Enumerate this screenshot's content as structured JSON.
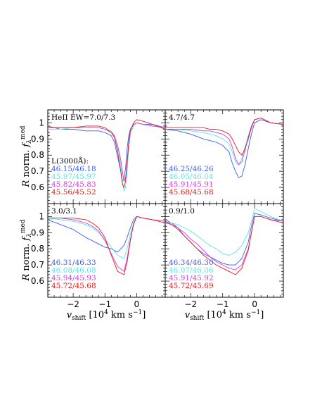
{
  "chart_data": {
    "type": "line",
    "layout": "2x2 grid, shared axes",
    "xlabel": "v_shift [10^4 km s^-1]",
    "xlabel_main": "v",
    "xlabel_sub": "shift",
    "xlabel_unit_pre": " [10",
    "xlabel_unit_exp": "4",
    "xlabel_unit_post": " km s",
    "xlabel_unit_exp2": "−1",
    "xlabel_unit_end": "]",
    "ylabel": "R norm. f_λ^med",
    "ylabel_pre": "R",
    "ylabel_mid": " norm. ",
    "ylabel_f": "f",
    "ylabel_sub": "λ",
    "ylabel_sup": "med",
    "xlim": [
      -2.8,
      0.9
    ],
    "ylim": [
      0.5,
      1.08
    ],
    "x_ticks": [
      -2,
      -1,
      0
    ],
    "x_tick_labels": [
      "−2",
      "−1",
      "0"
    ],
    "y_ticks": [
      0.6,
      0.7,
      0.8,
      0.9,
      1.0
    ],
    "y_tick_labels": [
      "0.6",
      "0.7",
      "0.8",
      "0.9",
      "1"
    ],
    "legend_header": "L(3000Å):",
    "colors": {
      "blue": "#3b5ff0",
      "cyan": "#5ee6e6",
      "magenta": "#d63ce6",
      "red": "#f01818"
    },
    "panels": [
      {
        "title": "HeII EW=7.0/7.3",
        "legend_header_shown": true,
        "labels": [
          "46.15/46.18",
          "45.97/45.97",
          "45.82/45.83",
          "45.56/45.52"
        ],
        "series": [
          {
            "color_key": "blue",
            "x": [
              -2.8,
              -2.4,
              -2.0,
              -1.6,
              -1.2,
              -1.0,
              -0.8,
              -0.7,
              -0.6,
              -0.5,
              -0.45,
              -0.4,
              -0.35,
              -0.3,
              -0.25,
              -0.2,
              -0.1,
              0,
              0.2,
              0.5,
              0.9
            ],
            "y": [
              0.98,
              0.96,
              0.96,
              0.95,
              0.95,
              0.94,
              0.92,
              0.88,
              0.79,
              0.7,
              0.64,
              0.65,
              0.72,
              0.84,
              0.92,
              0.96,
              0.99,
              1.0,
              0.99,
              0.99,
              0.97
            ]
          },
          {
            "color_key": "cyan",
            "x": [
              -2.8,
              -2.4,
              -2.0,
              -1.6,
              -1.2,
              -1.0,
              -0.8,
              -0.7,
              -0.6,
              -0.5,
              -0.45,
              -0.4,
              -0.35,
              -0.3,
              -0.25,
              -0.2,
              -0.1,
              0,
              0.2,
              0.5,
              0.9
            ],
            "y": [
              0.96,
              0.96,
              0.97,
              0.97,
              0.97,
              0.96,
              0.95,
              0.92,
              0.85,
              0.74,
              0.64,
              0.58,
              0.6,
              0.7,
              0.84,
              0.93,
              0.98,
              1.0,
              0.99,
              0.98,
              0.97
            ]
          },
          {
            "color_key": "magenta",
            "x": [
              -2.8,
              -2.4,
              -2.0,
              -1.6,
              -1.2,
              -1.0,
              -0.8,
              -0.7,
              -0.6,
              -0.5,
              -0.45,
              -0.4,
              -0.35,
              -0.3,
              -0.25,
              -0.2,
              -0.1,
              0,
              0.2,
              0.5,
              0.9
            ],
            "y": [
              0.97,
              0.97,
              0.97,
              0.97,
              0.97,
              0.96,
              0.94,
              0.92,
              0.86,
              0.77,
              0.7,
              0.64,
              0.66,
              0.76,
              0.88,
              0.95,
              0.99,
              1.0,
              0.99,
              0.98,
              0.97
            ]
          },
          {
            "color_key": "red",
            "x": [
              -2.8,
              -2.4,
              -2.0,
              -1.6,
              -1.2,
              -1.0,
              -0.8,
              -0.7,
              -0.6,
              -0.5,
              -0.45,
              -0.4,
              -0.35,
              -0.3,
              -0.25,
              -0.2,
              -0.1,
              0,
              0.2,
              0.5,
              0.9
            ],
            "y": [
              0.97,
              0.97,
              0.97,
              0.98,
              0.98,
              0.97,
              0.94,
              0.91,
              0.82,
              0.7,
              0.62,
              0.6,
              0.64,
              0.75,
              0.87,
              0.95,
              1.0,
              1.02,
              1.01,
              0.99,
              0.96
            ]
          }
        ]
      },
      {
        "title": "4.7/4.7",
        "legend_header_shown": false,
        "labels": [
          "46.25/46.26",
          "46.05/46.04",
          "45.91/45.91",
          "45.68/45.68"
        ],
        "series": [
          {
            "color_key": "blue",
            "x": [
              -2.8,
              -2.4,
              -2.0,
              -1.6,
              -1.4,
              -1.2,
              -1.0,
              -0.8,
              -0.7,
              -0.6,
              -0.5,
              -0.4,
              -0.3,
              -0.2,
              -0.1,
              0,
              0.2,
              0.5,
              0.9
            ],
            "y": [
              0.96,
              0.95,
              0.93,
              0.9,
              0.89,
              0.88,
              0.86,
              0.82,
              0.75,
              0.7,
              0.66,
              0.67,
              0.74,
              0.84,
              0.93,
              1.0,
              1.02,
              1.0,
              0.99
            ]
          },
          {
            "color_key": "cyan",
            "x": [
              -2.8,
              -2.4,
              -2.0,
              -1.6,
              -1.4,
              -1.2,
              -1.0,
              -0.8,
              -0.7,
              -0.6,
              -0.5,
              -0.4,
              -0.3,
              -0.2,
              -0.1,
              0,
              0.2,
              0.5,
              0.9
            ],
            "y": [
              0.96,
              0.96,
              0.95,
              0.94,
              0.93,
              0.92,
              0.9,
              0.87,
              0.82,
              0.76,
              0.74,
              0.78,
              0.85,
              0.92,
              0.98,
              1.02,
              1.03,
              1.0,
              0.99
            ]
          },
          {
            "color_key": "magenta",
            "x": [
              -2.8,
              -2.4,
              -2.0,
              -1.6,
              -1.4,
              -1.2,
              -1.0,
              -0.8,
              -0.7,
              -0.6,
              -0.5,
              -0.4,
              -0.3,
              -0.2,
              -0.1,
              0,
              0.2,
              0.5,
              0.9
            ],
            "y": [
              0.96,
              0.96,
              0.96,
              0.95,
              0.95,
              0.94,
              0.93,
              0.9,
              0.85,
              0.78,
              0.74,
              0.76,
              0.83,
              0.91,
              0.98,
              1.02,
              1.03,
              1.0,
              0.99
            ]
          },
          {
            "color_key": "red",
            "x": [
              -2.8,
              -2.4,
              -2.0,
              -1.6,
              -1.4,
              -1.2,
              -1.0,
              -0.8,
              -0.7,
              -0.6,
              -0.5,
              -0.4,
              -0.3,
              -0.2,
              -0.1,
              0,
              0.2,
              0.5,
              0.9
            ],
            "y": [
              0.97,
              0.97,
              0.97,
              0.97,
              0.96,
              0.96,
              0.95,
              0.93,
              0.9,
              0.86,
              0.82,
              0.8,
              0.84,
              0.9,
              0.97,
              1.02,
              1.03,
              1.0,
              0.99
            ]
          }
        ]
      },
      {
        "title": "3.0/3.1",
        "legend_header_shown": false,
        "labels": [
          "46.31/46.33",
          "46.08/46.08",
          "45.94/45.93",
          "45.72/45.68"
        ],
        "series": [
          {
            "color_key": "blue",
            "x": [
              -2.8,
              -2.4,
              -2.0,
              -1.6,
              -1.4,
              -1.2,
              -1.0,
              -0.8,
              -0.6,
              -0.4,
              -0.3,
              -0.2,
              -0.1,
              0,
              0.2,
              0.5,
              0.9
            ],
            "y": [
              0.98,
              0.95,
              0.92,
              0.87,
              0.85,
              0.83,
              0.81,
              0.8,
              0.78,
              0.82,
              0.87,
              0.93,
              0.98,
              1.0,
              0.99,
              0.98,
              0.97
            ]
          },
          {
            "color_key": "cyan",
            "x": [
              -2.8,
              -2.4,
              -2.0,
              -1.6,
              -1.4,
              -1.2,
              -1.0,
              -0.8,
              -0.6,
              -0.4,
              -0.3,
              -0.2,
              -0.1,
              0,
              0.2,
              0.5,
              0.9
            ],
            "y": [
              0.99,
              0.98,
              0.97,
              0.95,
              0.93,
              0.9,
              0.86,
              0.81,
              0.76,
              0.74,
              0.8,
              0.89,
              0.96,
              1.0,
              0.99,
              0.98,
              0.97
            ]
          },
          {
            "color_key": "magenta",
            "x": [
              -2.8,
              -2.4,
              -2.0,
              -1.6,
              -1.4,
              -1.2,
              -1.0,
              -0.8,
              -0.6,
              -0.4,
              -0.3,
              -0.2,
              -0.1,
              0,
              0.2,
              0.5,
              0.9
            ],
            "y": [
              0.99,
              0.99,
              0.98,
              0.96,
              0.94,
              0.91,
              0.85,
              0.77,
              0.69,
              0.66,
              0.74,
              0.86,
              0.95,
              1.0,
              0.99,
              0.98,
              0.97
            ]
          },
          {
            "color_key": "red",
            "x": [
              -2.8,
              -2.4,
              -2.0,
              -1.6,
              -1.4,
              -1.2,
              -1.0,
              -0.8,
              -0.6,
              -0.4,
              -0.3,
              -0.2,
              -0.1,
              0,
              0.2,
              0.5,
              0.9
            ],
            "y": [
              0.99,
              0.99,
              0.99,
              0.98,
              0.96,
              0.93,
              0.87,
              0.76,
              0.66,
              0.64,
              0.72,
              0.85,
              0.95,
              1.0,
              0.99,
              0.98,
              0.96
            ]
          }
        ]
      },
      {
        "title": "0.9/1.0",
        "legend_header_shown": false,
        "labels": [
          "46.34/46.30",
          "46.07/46.06",
          "45.91/45.92",
          "45.72/45.69"
        ],
        "series": [
          {
            "color_key": "blue",
            "x": [
              -2.8,
              -2.6,
              -2.4,
              -2.2,
              -2.0,
              -1.8,
              -1.6,
              -1.4,
              -1.2,
              -1.0,
              -0.8,
              -0.6,
              -0.4,
              -0.2,
              -0.1,
              0,
              0.2,
              0.5,
              0.9
            ],
            "y": [
              0.98,
              0.96,
              0.93,
              0.88,
              0.84,
              0.8,
              0.77,
              0.75,
              0.73,
              0.71,
              0.7,
              0.7,
              0.74,
              0.84,
              0.94,
              1.02,
              1.01,
              0.99,
              0.97
            ]
          },
          {
            "color_key": "cyan",
            "x": [
              -2.8,
              -2.6,
              -2.4,
              -2.2,
              -2.0,
              -1.8,
              -1.6,
              -1.4,
              -1.2,
              -1.0,
              -0.8,
              -0.6,
              -0.4,
              -0.2,
              -0.1,
              0,
              0.2,
              0.5,
              0.9
            ],
            "y": [
              0.97,
              0.96,
              0.95,
              0.93,
              0.91,
              0.88,
              0.85,
              0.82,
              0.8,
              0.77,
              0.76,
              0.78,
              0.82,
              0.9,
              0.97,
              1.05,
              1.03,
              1.0,
              0.97
            ]
          },
          {
            "color_key": "magenta",
            "x": [
              -2.8,
              -2.6,
              -2.4,
              -2.2,
              -2.0,
              -1.8,
              -1.6,
              -1.4,
              -1.2,
              -1.0,
              -0.8,
              -0.6,
              -0.4,
              -0.2,
              -0.1,
              0,
              0.2,
              0.5,
              0.9
            ],
            "y": [
              0.96,
              0.95,
              0.93,
              0.9,
              0.86,
              0.83,
              0.79,
              0.75,
              0.72,
              0.7,
              0.68,
              0.67,
              0.7,
              0.8,
              0.9,
              1.0,
              1.0,
              0.98,
              0.97
            ]
          },
          {
            "color_key": "red",
            "x": [
              -2.8,
              -2.6,
              -2.4,
              -2.2,
              -2.0,
              -1.8,
              -1.6,
              -1.4,
              -1.2,
              -1.0,
              -0.8,
              -0.6,
              -0.4,
              -0.2,
              -0.1,
              0,
              0.2,
              0.5,
              0.9
            ],
            "y": [
              0.97,
              0.95,
              0.92,
              0.88,
              0.84,
              0.8,
              0.76,
              0.73,
              0.7,
              0.68,
              0.66,
              0.64,
              0.68,
              0.79,
              0.9,
              1.0,
              1.0,
              0.98,
              0.96
            ]
          }
        ]
      }
    ]
  }
}
